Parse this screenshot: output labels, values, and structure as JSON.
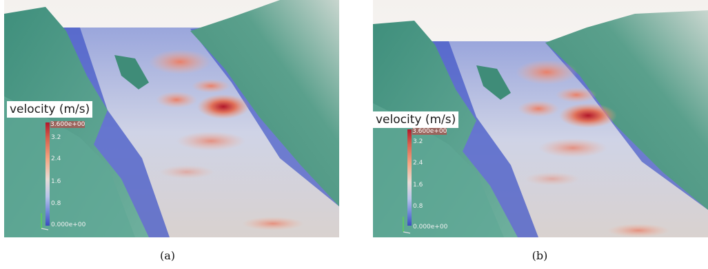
{
  "panels": [
    {
      "caption": "(a)",
      "colorbar": {
        "title": "velocity (m/s)",
        "ticks": [
          "3.600e+00",
          "3.2",
          "2.4",
          "1.6",
          "0.8",
          "0.000e+00"
        ],
        "values": [
          3.6,
          3.2,
          2.4,
          1.6,
          0.8,
          0.0
        ]
      }
    },
    {
      "caption": "(b)",
      "colorbar": {
        "title": "velocity (m/s)",
        "ticks": [
          "3.600e+00",
          "3.2",
          "2.4",
          "1.6",
          "0.8",
          "0.000e+00"
        ],
        "values": [
          3.6,
          3.2,
          2.4,
          1.6,
          0.8,
          0.0
        ]
      }
    }
  ],
  "colors": {
    "terrain": "#4a9a86",
    "terrain_light": "#8bbfae",
    "water_low": "#3b4cc0",
    "water_mid": "#c9cde6",
    "water_high": "#b2182b"
  }
}
